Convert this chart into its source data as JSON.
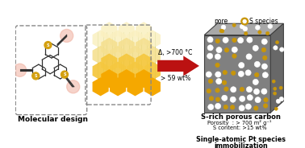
{
  "bg_color": "#ffffff",
  "fig_width": 3.78,
  "fig_height": 1.84,
  "dpi": 100,
  "legend_pore_label": "pore",
  "legend_s_label": "S species",
  "arrow_text1": "Δ, >700 °C",
  "arrow_text2": "> 59 wt%",
  "box1_label": "Molecular design",
  "right_title": "S-rich porous carbon",
  "right_line1": "Porosity  : > 700 m² g⁻¹",
  "right_line2": "S content: >15 wt%",
  "bottom_text1": "Single-atomic Pt species",
  "bottom_text2": "immobilization",
  "cube_face_color": "#808080",
  "cube_top_color": "#A8A8A8",
  "cube_right_color": "#686868",
  "cube_edge_color": "#404040",
  "hex_dark_color": "#F5A800",
  "hex_mid_color": "#F5C840",
  "hex_light_color": "#F5E090",
  "hex_lightest_color": "#FAF0C0",
  "s_atom_color": "#C8960A",
  "arrow_color": "#BB1111",
  "dashed_box_color": "#888888",
  "green_line_color": "#6A9A20",
  "pore_color": "#FFFFFF",
  "pore_edge_color": "#C0C0C0",
  "s_dot_color": "#C8960A",
  "s_dot_edge": "#8A6400",
  "glow_color": "#F0B0A0",
  "mol_line_color": "#303030",
  "mol_s_color": "#D4A010"
}
